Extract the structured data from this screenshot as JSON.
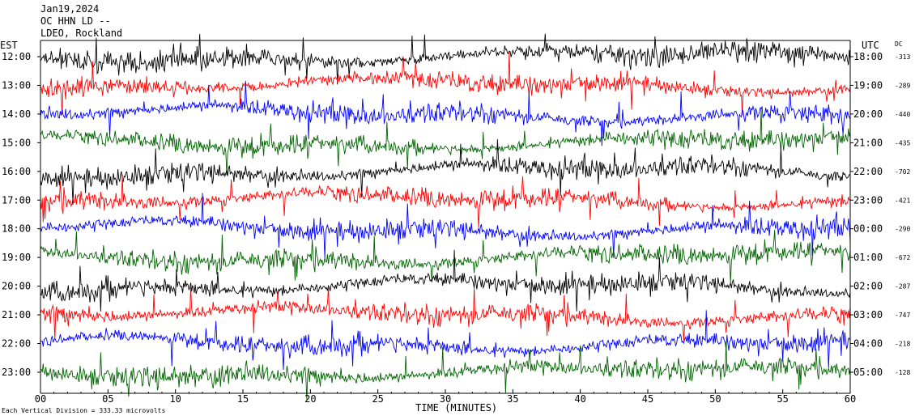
{
  "header": {
    "date": "Jan19,2024",
    "station": "OC HHN LD --",
    "source": "LDEO, Rockland"
  },
  "left_axis_label": "EST",
  "right_axis_label": "UTC",
  "dc_label": "DC",
  "footer": {
    "scale_note": "Each Vertical Division =  333.33 microvolts",
    "time_label": "TIME (MINUTES)"
  },
  "colors": {
    "trace_cycle": [
      "#000000",
      "#ff0000",
      "#0000ff",
      "#006400"
    ],
    "axis": "#000000",
    "background": "#ffffff"
  },
  "chart_data": {
    "type": "line",
    "title": "",
    "xlabel": "TIME (MINUTES)",
    "ylabel": "",
    "xlim": [
      0,
      60
    ],
    "x_ticks": [
      "00",
      "05",
      "10",
      "15",
      "20",
      "25",
      "30",
      "35",
      "40",
      "45",
      "50",
      "55",
      "60"
    ],
    "rows": [
      {
        "est": "12:00",
        "utc": "18:00",
        "dc": "-313",
        "color": "#000000"
      },
      {
        "est": "13:00",
        "utc": "19:00",
        "dc": "-289",
        "color": "#ff0000"
      },
      {
        "est": "14:00",
        "utc": "20:00",
        "dc": "-440",
        "color": "#0000ff"
      },
      {
        "est": "15:00",
        "utc": "21:00",
        "dc": "-435",
        "color": "#006400"
      },
      {
        "est": "16:00",
        "utc": "22:00",
        "dc": "-702",
        "color": "#000000"
      },
      {
        "est": "17:00",
        "utc": "23:00",
        "dc": "-421",
        "color": "#ff0000"
      },
      {
        "est": "18:00",
        "utc": "00:00",
        "dc": "-290",
        "color": "#0000ff"
      },
      {
        "est": "19:00",
        "utc": "01:00",
        "dc": "-672",
        "color": "#006400"
      },
      {
        "est": "20:00",
        "utc": "02:00",
        "dc": "-287",
        "color": "#000000"
      },
      {
        "est": "21:00",
        "utc": "03:00",
        "dc": "-747",
        "color": "#ff0000"
      },
      {
        "est": "22:00",
        "utc": "04:00",
        "dc": "-218",
        "color": "#0000ff"
      },
      {
        "est": "23:00",
        "utc": "05:00",
        "dc": "-128",
        "color": "#006400"
      }
    ],
    "grid": false
  }
}
